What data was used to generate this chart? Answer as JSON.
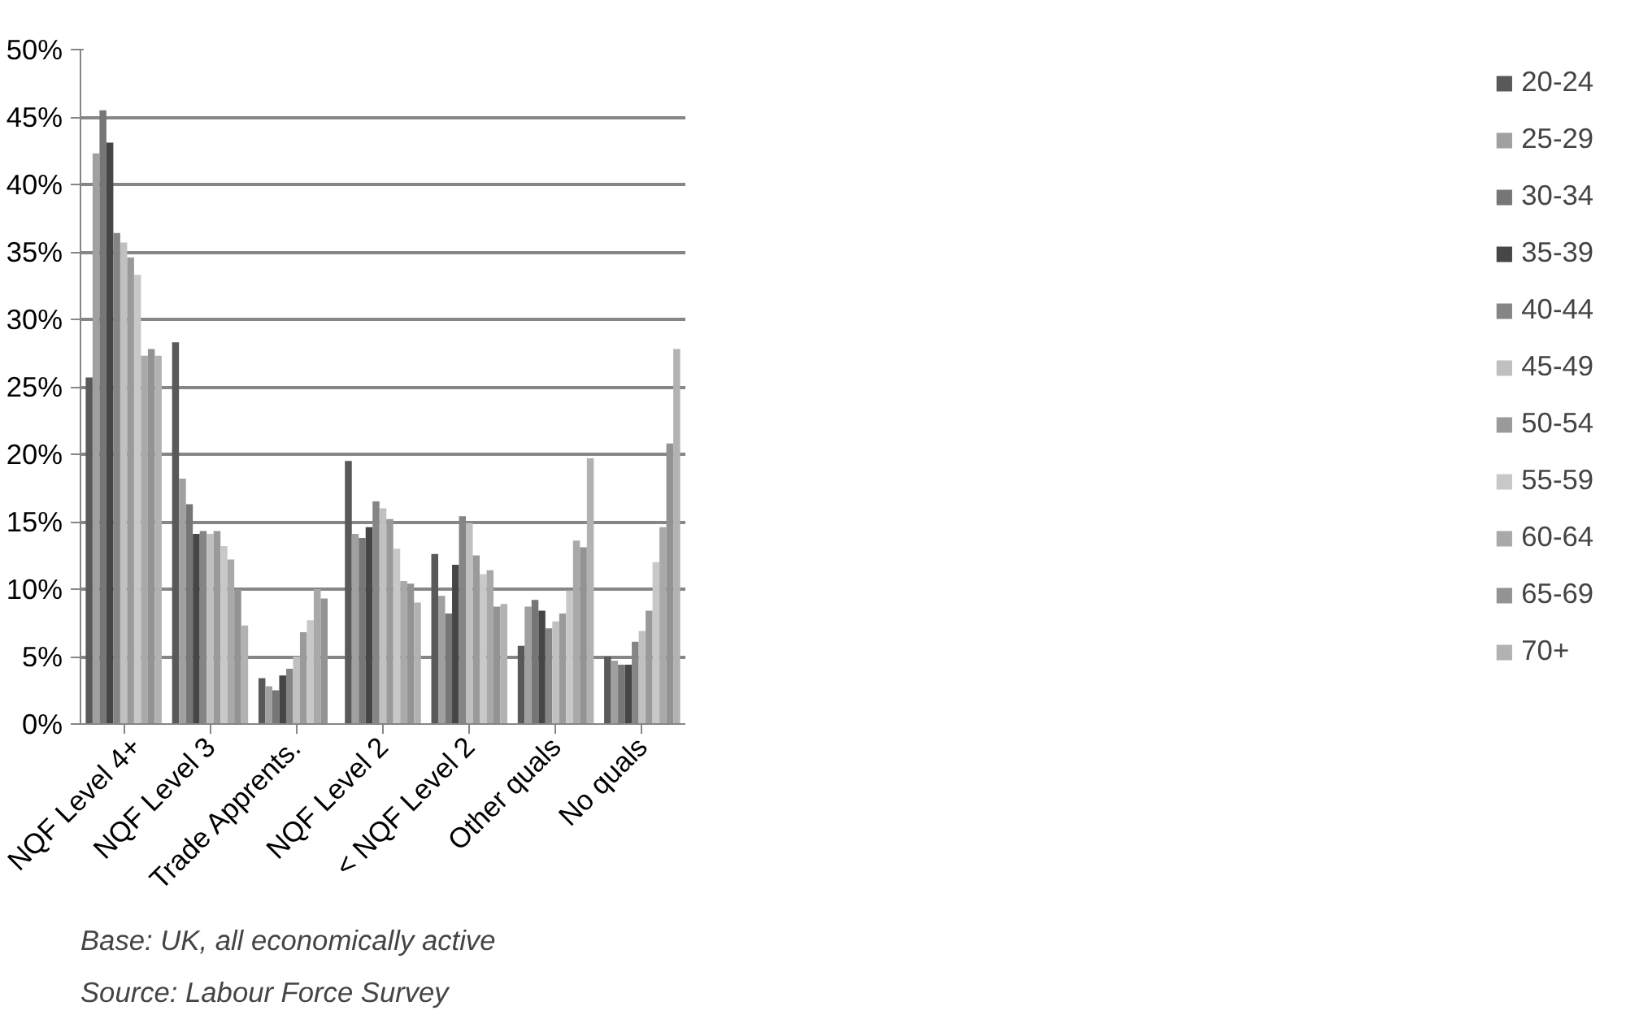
{
  "chart_data": {
    "type": "bar",
    "categories": [
      "NQF Level 4+",
      "NQF Level 3",
      "Trade Apprents.",
      "NQF Level 2",
      "< NQF Level 2",
      "Other quals",
      "No quals"
    ],
    "series": [
      {
        "name": "20-24",
        "color": "#595959",
        "values": [
          25.7,
          28.3,
          3.4,
          19.5,
          12.6,
          5.8,
          5.0
        ]
      },
      {
        "name": "25-29",
        "color": "#a0a0a0",
        "values": [
          42.3,
          18.2,
          2.8,
          14.1,
          9.5,
          8.7,
          4.7
        ]
      },
      {
        "name": "30-34",
        "color": "#767676",
        "values": [
          45.5,
          16.3,
          2.5,
          13.8,
          8.2,
          9.2,
          4.4
        ]
      },
      {
        "name": "35-39",
        "color": "#464646",
        "values": [
          43.1,
          14.1,
          3.6,
          14.6,
          11.8,
          8.4,
          4.4
        ]
      },
      {
        "name": "40-44",
        "color": "#858585",
        "values": [
          36.4,
          14.3,
          4.1,
          16.5,
          15.4,
          7.1,
          6.1
        ]
      },
      {
        "name": "45-49",
        "color": "#c0c0c0",
        "values": [
          35.7,
          14.1,
          5.0,
          16.0,
          14.9,
          7.6,
          6.9
        ]
      },
      {
        "name": "50-54",
        "color": "#9a9a9a",
        "values": [
          34.6,
          14.3,
          6.8,
          15.2,
          12.5,
          8.2,
          8.4
        ]
      },
      {
        "name": "55-59",
        "color": "#c8c8c8",
        "values": [
          33.3,
          13.2,
          7.7,
          13.0,
          11.1,
          9.9,
          12.0
        ]
      },
      {
        "name": "60-64",
        "color": "#a9a9a9",
        "values": [
          27.3,
          12.2,
          10.0,
          10.6,
          11.4,
          13.6,
          14.6
        ]
      },
      {
        "name": "65-69",
        "color": "#939393",
        "values": [
          27.8,
          10.0,
          9.3,
          10.4,
          8.7,
          13.1,
          20.8
        ]
      },
      {
        "name": "70+",
        "color": "#b2b2b2",
        "values": [
          27.3,
          7.3,
          null,
          9.0,
          8.9,
          19.7,
          27.8
        ]
      }
    ],
    "ylim": [
      0,
      50
    ],
    "yticks": [
      {
        "value": 0,
        "label": "0%"
      },
      {
        "value": 5,
        "label": "5%"
      },
      {
        "value": 10,
        "label": "10%"
      },
      {
        "value": 15,
        "label": "15%"
      },
      {
        "value": 20,
        "label": "20%"
      },
      {
        "value": 25,
        "label": "25%"
      },
      {
        "value": 30,
        "label": "30%"
      },
      {
        "value": 35,
        "label": "35%"
      },
      {
        "value": 40,
        "label": "40%"
      },
      {
        "value": 45,
        "label": "45%"
      },
      {
        "value": 50,
        "label": "50%"
      }
    ],
    "grid": "y",
    "legend": "right",
    "annotations": [
      "Base: UK, all economically active",
      "Source: Labour Force Survey"
    ]
  }
}
